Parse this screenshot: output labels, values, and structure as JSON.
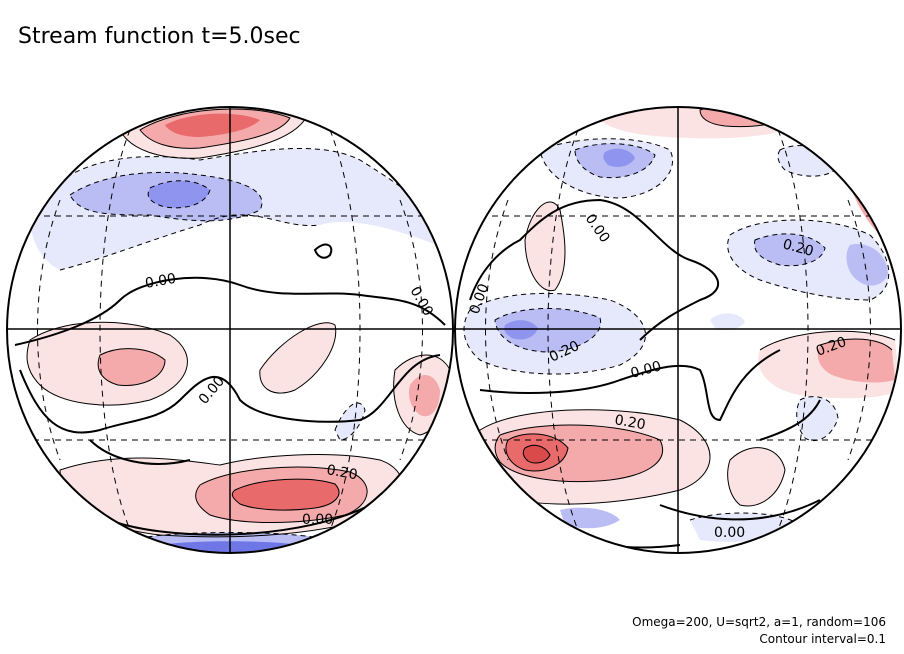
{
  "title": "Stream function t=5.0sec",
  "footer": {
    "params": "Omega=200, U=sqrt2, a=1, random=106",
    "contour_interval": "Contour interval=0.1"
  },
  "colors": {
    "positive_light": "#fbe3e3",
    "positive_mid": "#f4aaaa",
    "positive_strong": "#e86a6a",
    "negative_light": "#e6e8fb",
    "negative_mid": "#b9bdf4",
    "negative_strong": "#6f76e6",
    "contour": "#000000",
    "background": "#ffffff"
  },
  "left_globe": {
    "contour_labels": [
      {
        "text": "0.00",
        "rotate": -10
      },
      {
        "text": "0.00",
        "rotate": 60
      },
      {
        "text": "0.00",
        "rotate": -50
      },
      {
        "text": "0.20",
        "rotate": 10
      },
      {
        "text": "0.00",
        "rotate": 0
      }
    ]
  },
  "right_globe": {
    "contour_labels": [
      {
        "text": "0.00",
        "rotate": 55
      },
      {
        "text": "0.00",
        "rotate": -70
      },
      {
        "text": "0.20",
        "rotate": 15
      },
      {
        "text": "0.20",
        "rotate": -25
      },
      {
        "text": "0.00",
        "rotate": -15
      },
      {
        "text": "0.20",
        "rotate": -20
      },
      {
        "text": "0.20",
        "rotate": 10
      },
      {
        "text": "0.00",
        "rotate": 0
      }
    ]
  }
}
